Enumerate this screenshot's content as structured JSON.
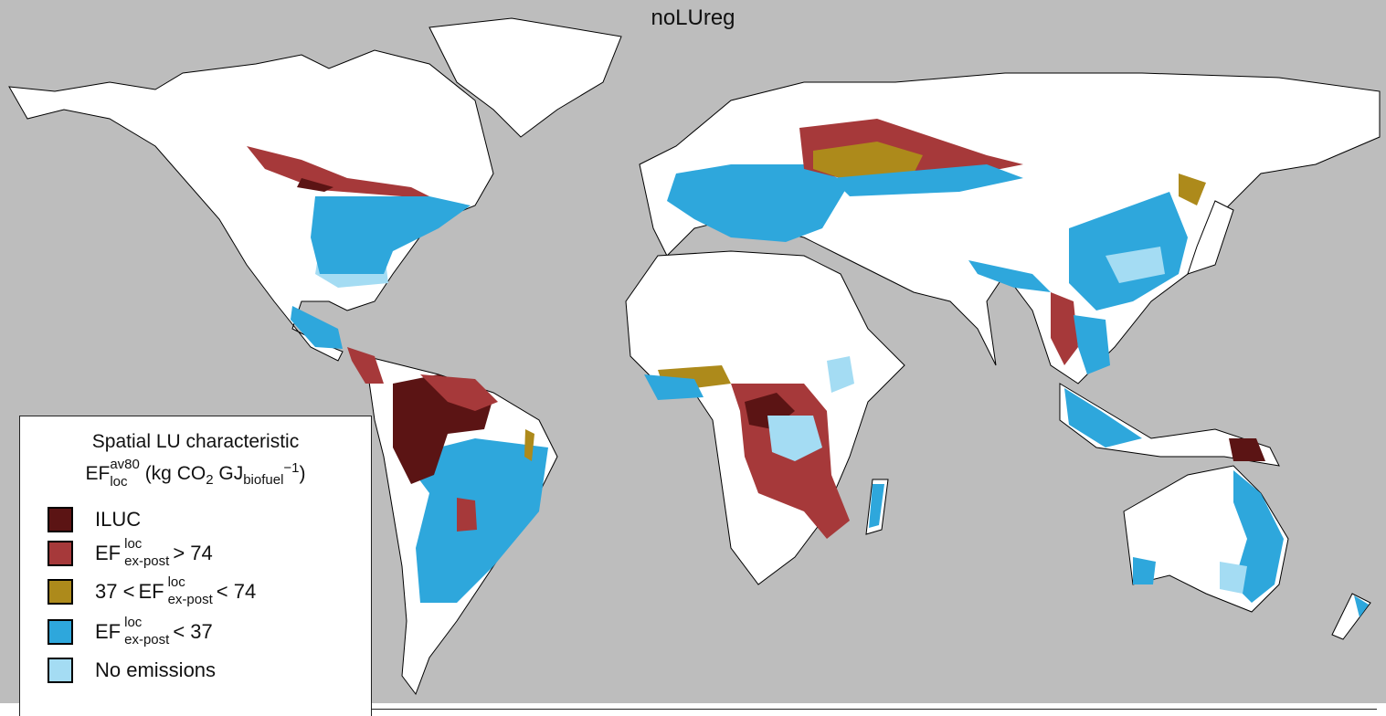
{
  "title": "noLUreg",
  "colors": {
    "ocean": "#bdbdbd",
    "land": "#ffffff",
    "border": "#000000",
    "iluc": "#5b1414",
    "high": "#a6393a",
    "mid": "#ad8a1b",
    "low": "#2ea7dc",
    "none": "#a4dcf3"
  },
  "legend": {
    "title": "Spatial LU characteristic",
    "unit_ef": "EF",
    "unit_sup": "av80",
    "unit_sub": "loc",
    "unit_open": "(kg CO",
    "unit_co2_sub": "2",
    "unit_gj": " GJ",
    "unit_gj_sub": "biofuel",
    "unit_exp": "−1",
    "unit_close": ")",
    "items": [
      {
        "id": "iluc",
        "label": "ILUC",
        "color": "#5b1414"
      },
      {
        "id": "high",
        "prefix": "",
        "ef": "EF",
        "sup": "loc",
        "sub": "ex-post",
        "suffix": "> 74",
        "color": "#a6393a"
      },
      {
        "id": "mid",
        "prefix": "37 <",
        "ef": "EF",
        "sup": "loc",
        "sub": "ex-post",
        "suffix": "< 74",
        "color": "#ad8a1b"
      },
      {
        "id": "low",
        "prefix": "",
        "ef": "EF",
        "sup": "loc",
        "sub": "ex-post",
        "suffix": "< 37",
        "color": "#2ea7dc"
      },
      {
        "id": "none",
        "label": "No emissions",
        "color": "#a4dcf3"
      }
    ]
  }
}
